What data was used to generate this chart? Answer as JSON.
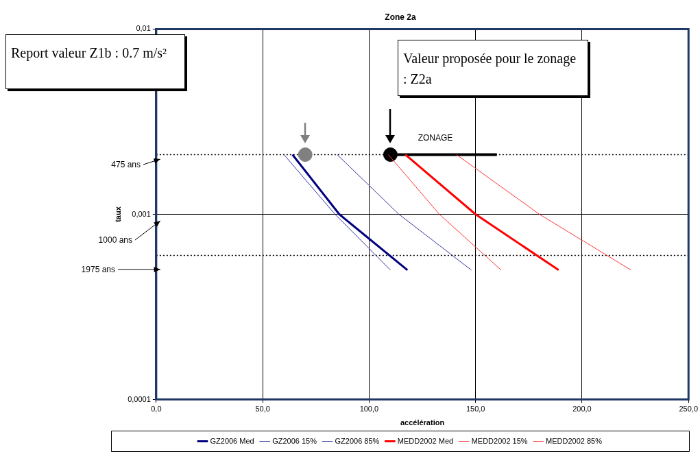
{
  "chart_data": {
    "type": "line",
    "title": "Zone 2a",
    "xlabel": "accélération",
    "ylabel": "taux",
    "log": "y",
    "xlim": [
      0,
      250
    ],
    "xticks": [
      {
        "value": 0,
        "label": "0,0"
      },
      {
        "value": 50,
        "label": "50,0"
      },
      {
        "value": 100,
        "label": "100,0"
      },
      {
        "value": 150,
        "label": "150,0"
      },
      {
        "value": 200,
        "label": "200,0"
      },
      {
        "value": 250,
        "label": "250,0"
      }
    ],
    "ylim": [
      0.0001,
      0.01
    ],
    "yticks": [
      {
        "value": 0.0001,
        "label": "0,0001"
      },
      {
        "value": 0.001,
        "label": "0,001"
      },
      {
        "value": 0.01,
        "label": "0,01"
      }
    ],
    "grid": true,
    "legend": "bottom",
    "marker": "none",
    "series": [
      {
        "name": "GZ2006 Med",
        "color": "#000080",
        "x": [
          64,
          86,
          118
        ],
        "values": [
          0.0021,
          0.001,
          0.0005
        ]
      },
      {
        "name": "GZ2006 15%",
        "color": "#3333a0",
        "x": [
          60,
          84,
          110
        ],
        "values": [
          0.0021,
          0.001,
          0.0005
        ]
      },
      {
        "name": "GZ2006 85%",
        "color": "#3333a0",
        "x": [
          85,
          114,
          148
        ],
        "values": [
          0.0021,
          0.001,
          0.0005
        ]
      },
      {
        "name": "MEDD2002 Med",
        "color": "#ff0000",
        "x": [
          117,
          150,
          189
        ],
        "values": [
          0.0021,
          0.001,
          0.0005
        ]
      },
      {
        "name": "MEDD2002 15%",
        "color": "#ff3333",
        "x": [
          109,
          133,
          162
        ],
        "values": [
          0.0021,
          0.001,
          0.0005
        ]
      },
      {
        "name": "MEDD2002 85%",
        "color": "#ff3333",
        "x": [
          141,
          180,
          223
        ],
        "values": [
          0.0021,
          0.001,
          0.0005
        ]
      },
      {
        "type": "line",
        "color": "#000000",
        "x": [
          110,
          160
        ],
        "values": [
          0.0021,
          0.0021
        ]
      },
      {
        "type": "scatter",
        "marker": "circle",
        "colors": [
          "#808080",
          "#000000"
        ],
        "x": [
          70,
          110
        ],
        "values": [
          0.0021,
          0.0021
        ]
      }
    ],
    "ref_lines": [
      {
        "axis": "y",
        "value": 0.0021,
        "line_style": "dotted",
        "color": "#000000"
      },
      {
        "axis": "y",
        "value": 0.0006,
        "line_style": "dotted",
        "color": "#000000"
      }
    ],
    "annotations": [
      "Report valeur Z1b : 0.7 m/s²",
      "Valeur proposée pour le zonage : Z2a",
      "ZONAGE",
      "475 ans",
      "1000 ans",
      "1975 ans"
    ]
  }
}
